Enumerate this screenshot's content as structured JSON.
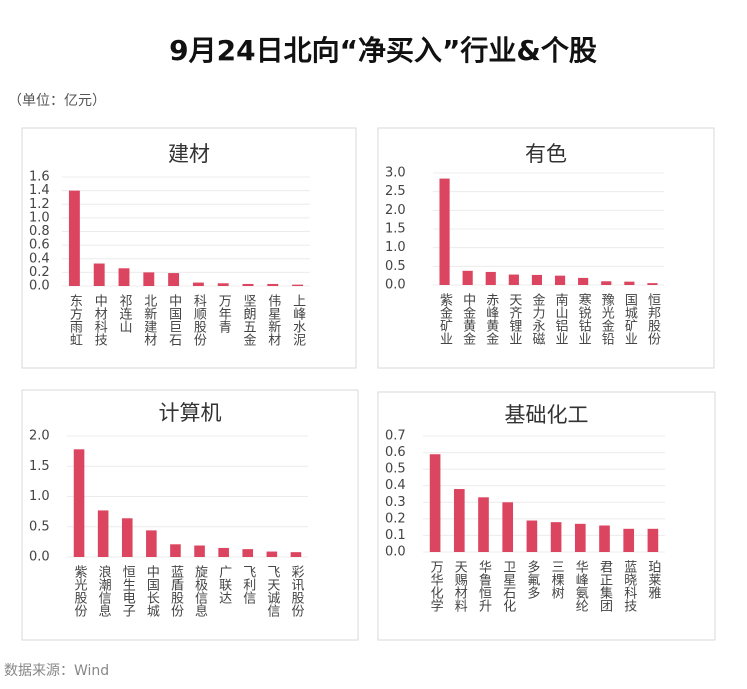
{
  "title": "9月24日北向“净买入”行业&个股",
  "unit": "（单位：亿元）",
  "source": "数据来源：Wind",
  "chart_data": [
    {
      "type": "bar",
      "title": "建材",
      "categories": [
        "东方雨虹",
        "中材科技",
        "祁连山",
        "北新建材",
        "中国巨石",
        "科顺股份",
        "万年青",
        "坚朗五金",
        "伟星新材",
        "上峰水泥"
      ],
      "values": [
        1.4,
        0.33,
        0.26,
        0.2,
        0.19,
        0.05,
        0.04,
        0.03,
        0.03,
        0.02
      ],
      "color": "#dc4560",
      "ylim": [
        0,
        1.6
      ],
      "yticks": [
        {
          "value": 0,
          "label": "0.0"
        },
        0.2,
        0.4,
        0.6,
        0.8,
        {
          "value": 1,
          "label": "1.0"
        },
        1.2,
        1.4,
        1.6
      ],
      "grid": true
    },
    {
      "type": "bar",
      "title": "有色",
      "categories": [
        "紫金矿业",
        "中金黄金",
        "赤峰黄金",
        "天齐锂业",
        "金力永磁",
        "南山铝业",
        "寒锐钴业",
        "豫光金铅",
        "国城矿业",
        "恒邦股份"
      ],
      "values": [
        2.85,
        0.38,
        0.35,
        0.28,
        0.27,
        0.25,
        0.19,
        0.1,
        0.09,
        0.05
      ],
      "color": "#dc4560",
      "ylim": [
        0,
        3
      ],
      "yticks": [
        {
          "value": 0,
          "label": "0.0"
        },
        0.5,
        {
          "value": 1,
          "label": "1.0"
        },
        1.5,
        {
          "value": 2,
          "label": "2.0"
        },
        2.5,
        {
          "value": 3,
          "label": "3.0"
        }
      ],
      "grid": true
    },
    {
      "type": "bar",
      "title": "计算机",
      "categories": [
        "紫光股份",
        "浪潮信息",
        "恒生电子",
        "中国长城",
        "蓝盾股份",
        "旋极信息",
        "广联达",
        "飞利信",
        "飞天诚信",
        "彩讯股份"
      ],
      "values": [
        1.78,
        0.77,
        0.64,
        0.44,
        0.21,
        0.19,
        0.15,
        0.13,
        0.09,
        0.08
      ],
      "color": "#dc4560",
      "ylim": [
        0,
        2
      ],
      "yticks": [
        {
          "value": 0,
          "label": "0.0"
        },
        0.5,
        {
          "value": 1,
          "label": "1.0"
        },
        1.5,
        {
          "value": 2,
          "label": "2.0"
        }
      ],
      "grid": true
    },
    {
      "type": "bar",
      "title": "基础化工",
      "categories": [
        "万华化学",
        "天赐材料",
        "华鲁恒升",
        "卫星石化",
        "多氟多",
        "三棵树",
        "华峰氨纶",
        "君正集团",
        "蓝晓科技",
        "珀莱雅"
      ],
      "values": [
        0.59,
        0.38,
        0.33,
        0.3,
        0.19,
        0.18,
        0.17,
        0.16,
        0.14,
        0.14
      ],
      "color": "#dc4560",
      "ylim": [
        0,
        0.7
      ],
      "yticks": [
        {
          "value": 0,
          "label": "0.0"
        },
        0.1,
        0.2,
        0.3,
        0.4,
        0.5,
        0.6,
        0.7
      ],
      "grid": true
    }
  ]
}
